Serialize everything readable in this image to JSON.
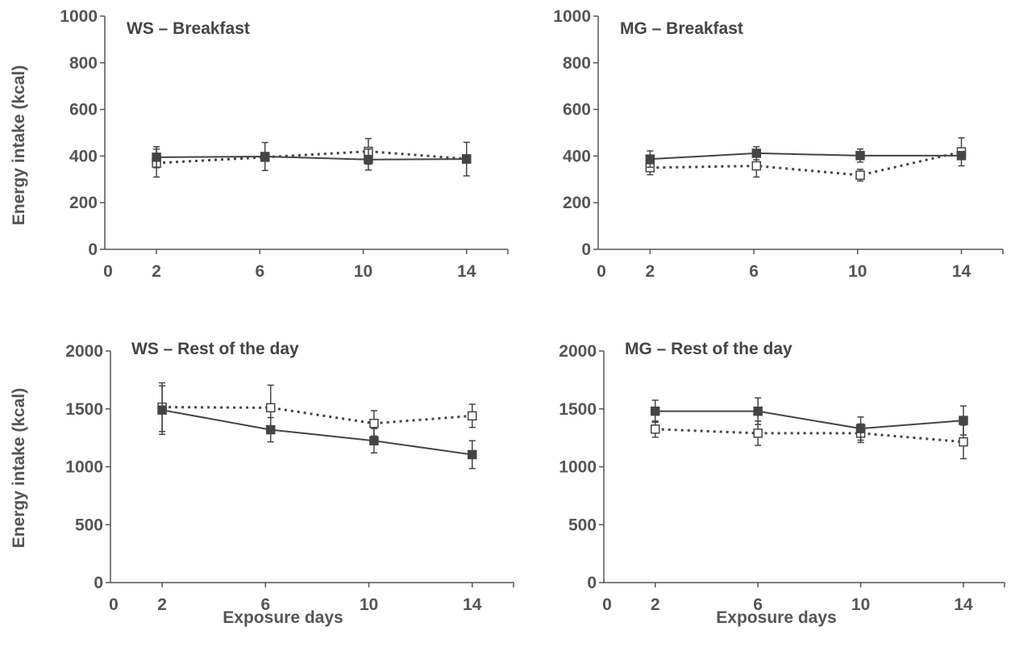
{
  "figure": {
    "y_axis_label": "Energy intake (kcal)",
    "x_axis_label": "Exposure days"
  },
  "chart_data": [
    {
      "id": "ws-breakfast",
      "type": "line",
      "title": "WS – Breakfast",
      "ylabel": "Energy intake (kcal)",
      "xlabel": "",
      "ylim": [
        0,
        1000
      ],
      "yticks": [
        0,
        200,
        400,
        600,
        800,
        1000
      ],
      "xlim": [
        0,
        15.6
      ],
      "xticks": [
        0,
        2,
        6,
        10,
        14
      ],
      "series": [
        {
          "marker": "filled",
          "dash": false,
          "x": [
            2,
            6.2,
            10.2,
            14
          ],
          "y": [
            395,
            398,
            385,
            387
          ],
          "err": [
            45,
            60,
            45,
            72
          ]
        },
        {
          "marker": "open",
          "dash": true,
          "x": [
            2,
            6.2,
            10.2,
            14
          ],
          "y": [
            370,
            395,
            420,
            388
          ],
          "err": [
            60,
            0,
            55,
            0
          ]
        }
      ]
    },
    {
      "id": "mg-breakfast",
      "type": "line",
      "title": "MG – Breakfast",
      "ylabel": "",
      "xlabel": "",
      "ylim": [
        0,
        1000
      ],
      "yticks": [
        0,
        200,
        400,
        600,
        800,
        1000
      ],
      "xlim": [
        0,
        15.6
      ],
      "xticks": [
        0,
        2,
        6,
        10,
        14
      ],
      "series": [
        {
          "marker": "filled",
          "dash": false,
          "x": [
            2,
            6.1,
            10.1,
            14
          ],
          "y": [
            387,
            412,
            402,
            402
          ],
          "err": [
            35,
            28,
            28,
            0
          ]
        },
        {
          "marker": "open",
          "dash": true,
          "x": [
            2,
            6.1,
            10.1,
            14
          ],
          "y": [
            350,
            358,
            318,
            418
          ],
          "err": [
            30,
            48,
            25,
            60
          ]
        }
      ]
    },
    {
      "id": "ws-rest",
      "type": "line",
      "title": "WS – Rest of the day",
      "ylabel": "Energy intake (kcal)",
      "xlabel": "Exposure days",
      "ylim": [
        0,
        2000
      ],
      "yticks": [
        0,
        500,
        1000,
        1500,
        2000
      ],
      "xlim": [
        0,
        15.6
      ],
      "xticks": [
        0,
        2,
        6,
        10,
        14
      ],
      "series": [
        {
          "marker": "filled",
          "dash": false,
          "x": [
            2,
            6.2,
            10.2,
            14
          ],
          "y": [
            1490,
            1320,
            1225,
            1105
          ],
          "err": [
            210,
            105,
            105,
            120
          ]
        },
        {
          "marker": "open",
          "dash": true,
          "x": [
            2,
            6.2,
            10.2,
            14
          ],
          "y": [
            1515,
            1510,
            1375,
            1440
          ],
          "err": [
            210,
            195,
            110,
            100
          ]
        }
      ]
    },
    {
      "id": "mg-rest",
      "type": "line",
      "title": "MG – Rest of the day",
      "ylabel": "",
      "xlabel": "Exposure days",
      "ylim": [
        0,
        2000
      ],
      "yticks": [
        0,
        500,
        1000,
        1500,
        2000
      ],
      "xlim": [
        0,
        15.6
      ],
      "xticks": [
        0,
        2,
        6,
        10,
        14
      ],
      "series": [
        {
          "marker": "filled",
          "dash": false,
          "x": [
            2,
            6,
            10,
            14
          ],
          "y": [
            1480,
            1480,
            1330,
            1400
          ],
          "err": [
            95,
            115,
            100,
            125
          ]
        },
        {
          "marker": "open",
          "dash": true,
          "x": [
            2,
            6,
            10,
            14
          ],
          "y": [
            1325,
            1290,
            1290,
            1215
          ],
          "err": [
            70,
            105,
            80,
            145
          ]
        }
      ]
    }
  ]
}
